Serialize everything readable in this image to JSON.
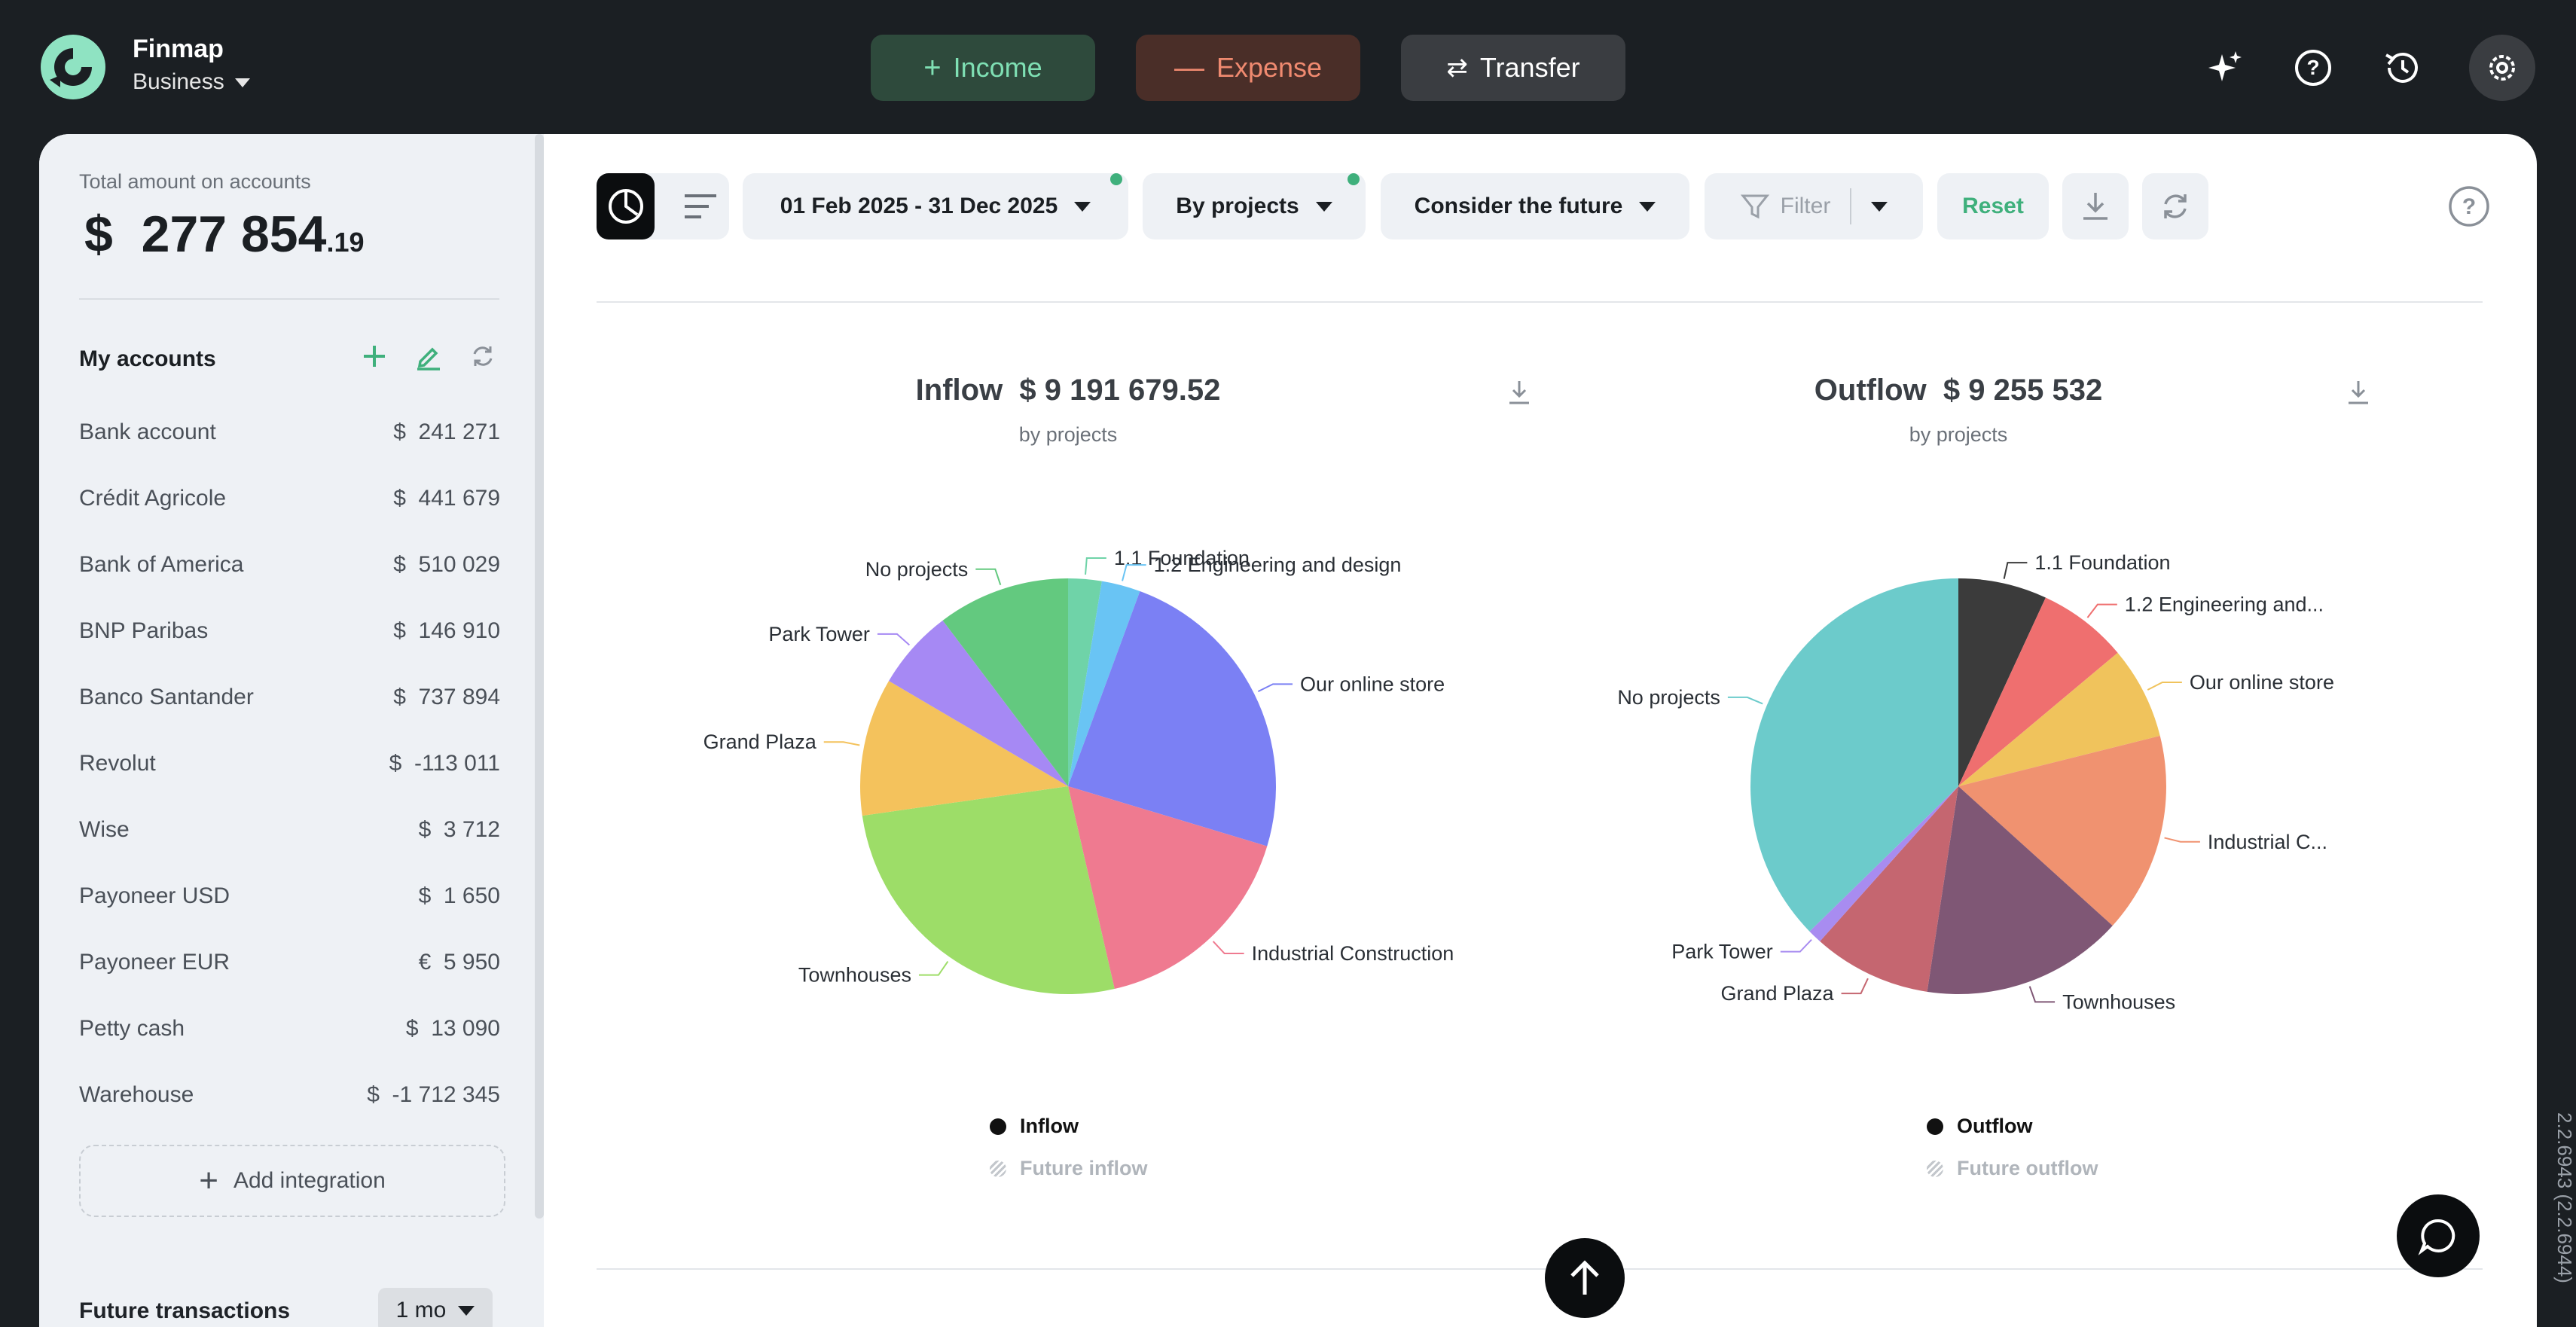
{
  "brand": {
    "name": "Finmap",
    "workspace": "Business"
  },
  "top_actions": {
    "income": "Income",
    "expense": "Expense",
    "transfer": "Transfer"
  },
  "top_icons": [
    "magic-icon",
    "help-icon",
    "history-icon",
    "gear-icon"
  ],
  "sidebar": {
    "total_label": "Total amount on accounts",
    "total_currency": "$",
    "total_int": "277 854",
    "total_cents": ".19",
    "accounts_title": "My accounts",
    "accounts": [
      {
        "name": "Bank account",
        "amount": "$  241 271"
      },
      {
        "name": "Crédit Agricole",
        "amount": "$  441 679"
      },
      {
        "name": "Bank of America",
        "amount": "$  510 029"
      },
      {
        "name": "BNP Paribas",
        "amount": "$  146 910"
      },
      {
        "name": "Banco Santander",
        "amount": "$  737 894"
      },
      {
        "name": "Revolut",
        "amount": "$  -113 011"
      },
      {
        "name": "Wise",
        "amount": "$  3 712"
      },
      {
        "name": "Payoneer USD",
        "amount": "$  1 650"
      },
      {
        "name": "Payoneer EUR",
        "amount": "€  5 950"
      },
      {
        "name": "Petty cash",
        "amount": "$  13 090"
      },
      {
        "name": "Warehouse",
        "amount": "$  -1 712 345"
      }
    ],
    "add_integration": "Add integration",
    "future_title": "Future transactions",
    "future_period": "1 mo"
  },
  "toolbar": {
    "date_range": "01 Feb 2025 - 31 Dec 2025",
    "group_by": "By projects",
    "future_mode": "Consider the future",
    "filter": "Filter",
    "reset": "Reset"
  },
  "colors": {
    "accent": "#3fb07c",
    "income_text": "#7fe0b4",
    "expense_text": "#f08a70"
  },
  "chart_data": [
    {
      "type": "pie",
      "title": "Inflow",
      "total": "$  9 191 679.52",
      "subtitle": "by projects",
      "slices": [
        {
          "label": "1.1 Foundation",
          "value": 2.5,
          "color": "#6fd3a8"
        },
        {
          "label": "1.2 Engineering and design",
          "value": 2.9,
          "color": "#69c4f4"
        },
        {
          "label": "Our online store",
          "value": 23.1,
          "color": "#7b80f4"
        },
        {
          "label": "Industrial Construction",
          "value": 16.1,
          "color": "#ef7a90"
        },
        {
          "label": "Townhouses",
          "value": 25.3,
          "color": "#9ddd68"
        },
        {
          "label": "Grand Plaza",
          "value": 10.3,
          "color": "#f4c25c"
        },
        {
          "label": "Park Tower",
          "value": 6.0,
          "color": "#a689f4"
        },
        {
          "label": "No projects",
          "value": 9.9,
          "color": "#63c97f"
        }
      ],
      "legend": [
        "Inflow",
        "Future inflow"
      ]
    },
    {
      "type": "pie",
      "title": "Outflow",
      "total": "$  9 255 532",
      "subtitle": "by projects",
      "slices": [
        {
          "label": "1.1 Foundation",
          "value": 6.9,
          "color": "#3b3b3b"
        },
        {
          "label": "1.2 Engineering and...",
          "value": 7.0,
          "color": "#ef6f6f"
        },
        {
          "label": "Our online store",
          "value": 7.2,
          "color": "#f0c35c"
        },
        {
          "label": "Industrial C...",
          "value": 15.6,
          "color": "#f09270"
        },
        {
          "label": "Townhouses",
          "value": 15.7,
          "color": "#7f5775"
        },
        {
          "label": "Grand Plaza",
          "value": 9.2,
          "color": "#c56670"
        },
        {
          "label": "Park Tower",
          "value": 1.1,
          "color": "#a88cf0"
        },
        {
          "label": "No projects",
          "value": 37.3,
          "color": "#6ccbcb"
        }
      ],
      "legend": [
        "Outflow",
        "Future outflow"
      ]
    }
  ],
  "version": "2.2.6943 (2.2.6944)"
}
